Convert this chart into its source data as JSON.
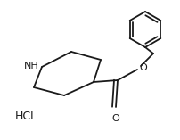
{
  "background_color": "#ffffff",
  "line_color": "#1a1a1a",
  "line_width": 1.3,
  "font_size": 8,
  "label_color": "#1a1a1a",
  "figsize": [
    2.03,
    1.57
  ],
  "dpi": 100,
  "hcl_text": "HCl",
  "nh_text": "NH",
  "o_text": "O"
}
